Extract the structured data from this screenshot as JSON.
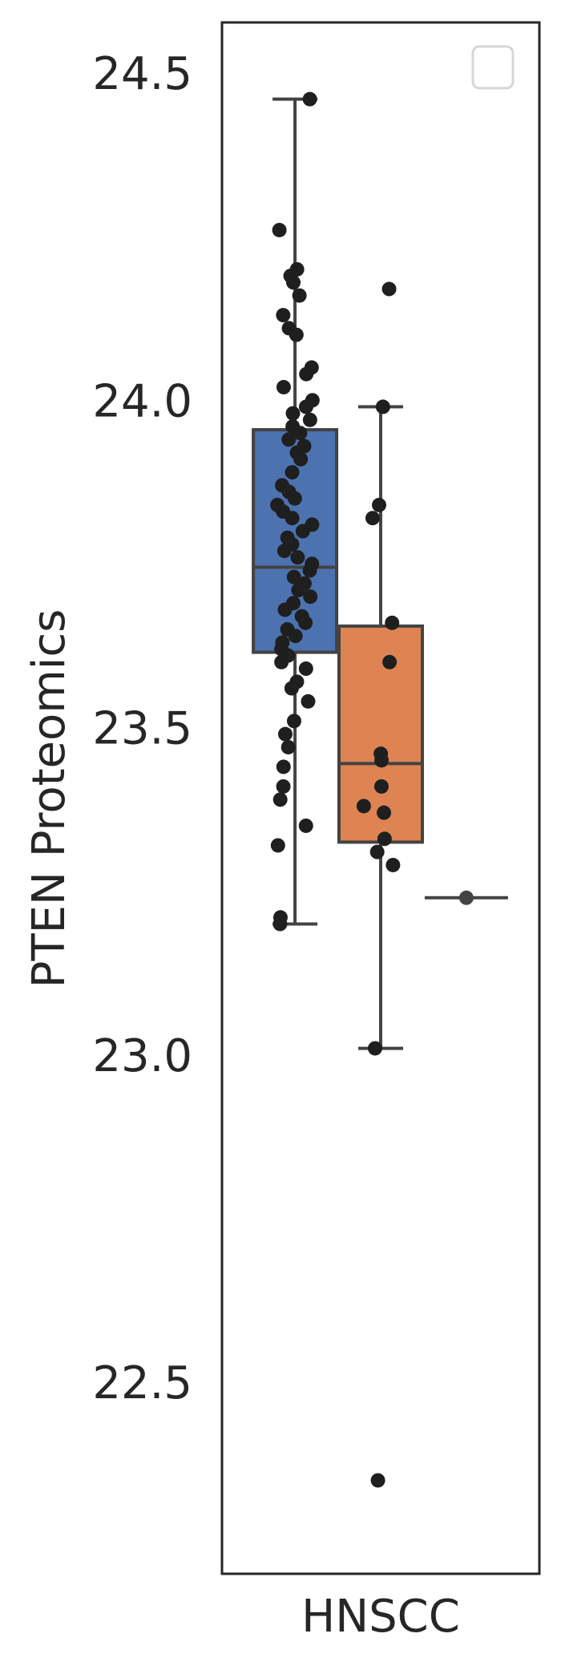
{
  "chart_data": {
    "type": "box",
    "title": "",
    "ylabel": "PTEN Proteomics",
    "xlabel": "",
    "ylim": [
      22.2,
      24.6
    ],
    "yticks": [
      22.5,
      23.0,
      23.5,
      24.0,
      24.5
    ],
    "ytick_labels": [
      "22.5",
      "23.0",
      "23.5",
      "24.0",
      "24.5"
    ],
    "categories": [
      "HNSCC"
    ],
    "grid": false,
    "legend": {
      "placement": "top-right",
      "entries": []
    },
    "groups": [
      {
        "offset": -0.27,
        "color": "#4c72b0",
        "box": {
          "q1": 23.615,
          "median": 23.745,
          "q3": 23.955,
          "whisker_low": 23.2,
          "whisker_high": 24.46
        },
        "points": [
          24.46,
          24.26,
          24.2,
          24.19,
          24.18,
          24.16,
          24.13,
          24.11,
          24.1,
          24.05,
          24.04,
          24.02,
          24.0,
          23.99,
          23.98,
          23.97,
          23.96,
          23.95,
          23.94,
          23.93,
          23.92,
          23.91,
          23.89,
          23.87,
          23.86,
          23.85,
          23.84,
          23.83,
          23.82,
          23.81,
          23.8,
          23.79,
          23.78,
          23.77,
          23.76,
          23.75,
          23.74,
          23.73,
          23.72,
          23.71,
          23.7,
          23.69,
          23.68,
          23.67,
          23.66,
          23.65,
          23.64,
          23.63,
          23.62,
          23.61,
          23.6,
          23.59,
          23.57,
          23.56,
          23.54,
          23.51,
          23.49,
          23.47,
          23.44,
          23.41,
          23.39,
          23.35,
          23.32,
          23.21,
          23.2
        ]
      },
      {
        "offset": 0.0,
        "color": "#dd8452",
        "box": {
          "q1": 23.325,
          "median": 23.445,
          "q3": 23.655,
          "whisker_low": 23.01,
          "whisker_high": 23.99
        },
        "points": [
          24.17,
          23.99,
          23.84,
          23.82,
          23.66,
          23.6,
          23.46,
          23.45,
          23.41,
          23.38,
          23.37,
          23.33,
          23.31,
          23.29,
          23.01,
          22.35
        ]
      },
      {
        "offset": 0.27,
        "color": "#444444",
        "box": {
          "q1": 23.24,
          "median": 23.24,
          "q3": 23.24,
          "whisker_low": 23.24,
          "whisker_high": 23.24
        },
        "points": [
          23.24
        ]
      }
    ]
  }
}
